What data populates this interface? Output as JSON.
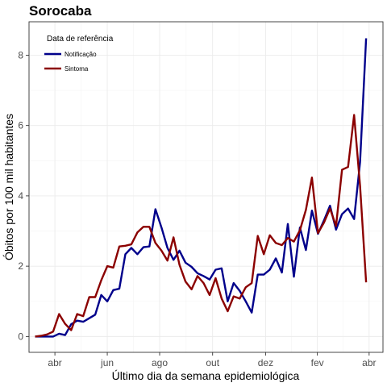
{
  "chart_data": {
    "type": "line",
    "title": "Sorocaba",
    "xlabel": "Último dia da semana epidemiológica",
    "ylabel": "Óbitos por 100 mil habitantes",
    "x_ticks": [
      "abr",
      "jun",
      "ago",
      "out",
      "dez",
      "fev",
      "abr"
    ],
    "x_tick_positions": [
      3.3,
      12.0,
      20.7,
      29.5,
      38.3,
      46.9,
      55.5
    ],
    "y_ticks": [
      0,
      2,
      4,
      6,
      8
    ],
    "xlim": [
      -1.0,
      57.8
    ],
    "ylim": [
      -0.45,
      8.95
    ],
    "grid": true,
    "legend": {
      "title": "Data de referência",
      "position": "top-left"
    },
    "series": [
      {
        "name": "Notificação",
        "color": "#00008b",
        "x": [
          0,
          1,
          2,
          3,
          4,
          5,
          6,
          7,
          8,
          9,
          10,
          11,
          12,
          13,
          14,
          15,
          16,
          17,
          18,
          19,
          20,
          21,
          22,
          23,
          24,
          25,
          26,
          27,
          28,
          29,
          30,
          31,
          32,
          33,
          34,
          35,
          36,
          37,
          38,
          39,
          40,
          41,
          42,
          43,
          44,
          45,
          46,
          47,
          48,
          49,
          50,
          51,
          52,
          53,
          54,
          55
        ],
        "values": [
          0,
          0,
          0,
          0,
          0.08,
          0.04,
          0.35,
          0.45,
          0.42,
          0.52,
          0.62,
          1.18,
          1.0,
          1.32,
          1.36,
          2.34,
          2.52,
          2.34,
          2.54,
          2.56,
          3.62,
          3.1,
          2.52,
          2.18,
          2.44,
          2.1,
          1.98,
          1.8,
          1.72,
          1.62,
          1.9,
          1.94,
          1.0,
          1.52,
          1.3,
          1.0,
          0.68,
          1.76,
          1.76,
          1.9,
          2.22,
          1.82,
          3.2,
          1.7,
          3.1,
          2.46,
          3.58,
          2.92,
          3.3,
          3.72,
          3.04,
          3.48,
          3.64,
          3.34,
          4.96,
          8.48
        ]
      },
      {
        "name": "Sintoma",
        "color": "#8b0000",
        "x": [
          0,
          1,
          2,
          3,
          4,
          5,
          6,
          7,
          8,
          9,
          10,
          11,
          12,
          13,
          14,
          15,
          16,
          17,
          18,
          19,
          20,
          21,
          22,
          23,
          24,
          25,
          26,
          27,
          28,
          29,
          30,
          31,
          32,
          33,
          34,
          35,
          36,
          37,
          38,
          39,
          40,
          41,
          42,
          43,
          44,
          45,
          46,
          47,
          48,
          49,
          50,
          51,
          52,
          53,
          54,
          55
        ],
        "values": [
          0,
          0.02,
          0.06,
          0.14,
          0.64,
          0.36,
          0.18,
          0.64,
          0.58,
          1.12,
          1.12,
          1.6,
          2.0,
          1.96,
          2.56,
          2.58,
          2.62,
          2.96,
          3.12,
          3.12,
          2.66,
          2.44,
          2.16,
          2.82,
          2.04,
          1.56,
          1.34,
          1.72,
          1.52,
          1.18,
          1.66,
          1.08,
          0.72,
          1.14,
          1.08,
          1.4,
          1.52,
          2.86,
          2.34,
          2.88,
          2.66,
          2.6,
          2.8,
          2.7,
          3.02,
          3.6,
          4.52,
          2.94,
          3.24,
          3.64,
          3.14,
          4.74,
          4.82,
          6.3,
          4.28,
          1.54
        ]
      }
    ]
  }
}
